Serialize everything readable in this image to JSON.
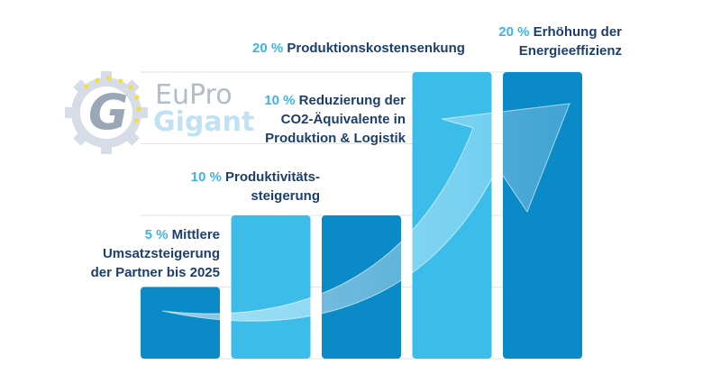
{
  "chart_data": {
    "type": "bar",
    "categories": [
      "Mittlere Umsatzsteigerung der Partner bis 2025",
      "Produktivitätssteigerung",
      "Reduzierung der CO2-Äquivalente in Produktion & Logistik",
      "Produktionskostensenkung",
      "Erhöhung der Energieeffizienz"
    ],
    "values": [
      5,
      10,
      10,
      20,
      20
    ],
    "unit": "%",
    "ylim": [
      0,
      20
    ],
    "grid": true,
    "bar_colors": [
      "#0a8ac6",
      "#3cbde9",
      "#0a8ac6",
      "#3cbde9",
      "#0a8ac6"
    ]
  },
  "labels": [
    {
      "pct": "5 %",
      "lines": [
        "Mittlere",
        "Umsatzsteigerung",
        "der Partner bis 2025"
      ]
    },
    {
      "pct": "10 %",
      "lines": [
        "Produktivitäts-",
        "steigerung"
      ]
    },
    {
      "pct": "10 %",
      "lines": [
        "Reduzierung der",
        "CO2-Äquivalente in",
        "Produktion & Logistik"
      ]
    },
    {
      "pct": "20 %",
      "lines": [
        "Produktionskostensenkung"
      ]
    },
    {
      "pct": "20 %",
      "lines": [
        "Erhöhung der",
        "Energieeffizienz"
      ]
    }
  ],
  "logo": {
    "line1": "EuPro",
    "line2": "Gigant",
    "mark": "G"
  },
  "colors": {
    "accent": "#3cb4e5",
    "text": "#1d3f6e",
    "grid": "#e3e3e3"
  }
}
